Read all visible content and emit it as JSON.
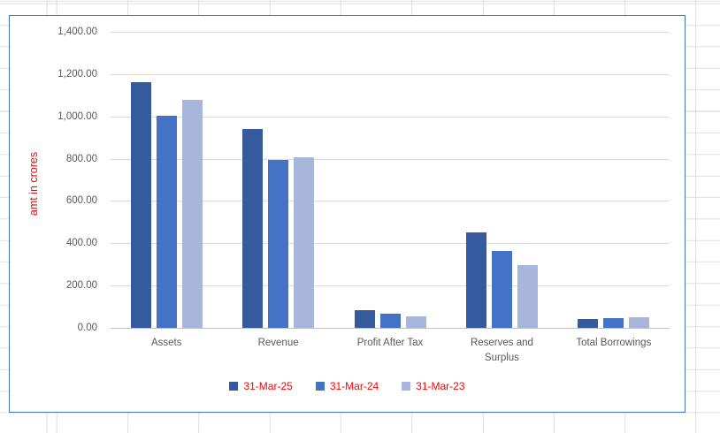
{
  "chart_data": {
    "type": "bar",
    "categories": [
      "Assets",
      "Revenue",
      "Profit After Tax",
      "Reserves and Surplus",
      "Total Borrowings"
    ],
    "series": [
      {
        "name": "31-Mar-25",
        "color": "#355A9E",
        "values": [
          1160,
          940,
          85,
          450,
          42
        ]
      },
      {
        "name": "31-Mar-24",
        "color": "#4472C4",
        "values": [
          1005,
          795,
          68,
          365,
          46
        ]
      },
      {
        "name": "31-Mar-23",
        "color": "#A9B6DC",
        "values": [
          1080,
          807,
          54,
          295,
          51
        ]
      }
    ],
    "title": "",
    "xlabel": "",
    "ylabel": "amt in crores",
    "ylim": [
      0,
      1400
    ],
    "ytick_step": 200,
    "ytick_labels": [
      "1,400.00",
      "1,200.00",
      "1,000.00",
      "800.00",
      "600.00",
      "400.00",
      "200.00",
      "0.00"
    ],
    "grid": true,
    "legend_position": "bottom",
    "colors": {
      "legend_text": "#FF0000",
      "axis_title_text": "#FF0000",
      "tick_label_text": "#595959",
      "gridline": "#D9D9D9",
      "chart_border": "#4472C4"
    }
  }
}
